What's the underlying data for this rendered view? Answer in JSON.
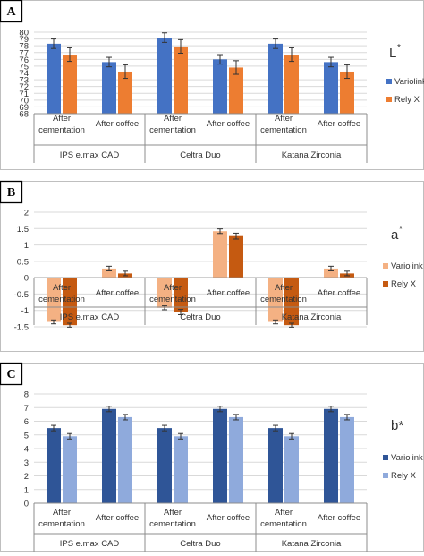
{
  "chart_data": [
    {
      "type": "bar",
      "panel_label": "A",
      "side_label": "L",
      "side_label_sup": "*",
      "groups": [
        "IPS e.max CAD",
        "Celtra Duo",
        "Katana Zirconia"
      ],
      "categories": [
        [
          "After",
          "cementation"
        ],
        [
          "After coffee"
        ],
        [
          "After",
          "cementation"
        ],
        [
          "After coffee"
        ],
        [
          "After",
          "cementation"
        ],
        [
          "After coffee"
        ]
      ],
      "ylim": [
        68,
        80
      ],
      "yticks": [
        68,
        69,
        70,
        71,
        72,
        73,
        74,
        75,
        76,
        77,
        78,
        79,
        80
      ],
      "grid": true,
      "legend_position": "right",
      "series": [
        {
          "name": "Variolink",
          "color": "#4472c4",
          "values": [
            78.3,
            75.6,
            79.2,
            76.0,
            78.3,
            75.6
          ],
          "errors": [
            0.7,
            0.7,
            0.7,
            0.7,
            0.7,
            0.7
          ]
        },
        {
          "name": "Rely X",
          "color": "#ed7d31",
          "values": [
            76.7,
            74.2,
            77.9,
            74.8,
            76.7,
            74.2
          ],
          "errors": [
            1.0,
            1.0,
            1.0,
            1.0,
            1.0,
            1.0
          ]
        }
      ]
    },
    {
      "type": "bar",
      "panel_label": "B",
      "side_label": "a",
      "side_label_sup": "*",
      "groups": [
        "IPS e.max CAD",
        "Celtra Duo",
        "Katana Zirconia"
      ],
      "categories": [
        [
          "After",
          "cementation"
        ],
        [
          "After coffee"
        ],
        [
          "After",
          "cementation"
        ],
        [
          "After coffee"
        ],
        [
          "After",
          "cementation"
        ],
        [
          "After coffee"
        ]
      ],
      "ylim": [
        -1.5,
        2
      ],
      "yticks": [
        -1.5,
        -1,
        -0.5,
        0,
        0.5,
        1,
        1.5,
        2
      ],
      "grid": true,
      "legend_position": "right",
      "series": [
        {
          "name": "Variolink",
          "color": "#f4b183",
          "values": [
            -1.35,
            0.28,
            -0.92,
            1.42,
            -1.35,
            0.28
          ],
          "errors": [
            0.06,
            0.07,
            0.06,
            0.07,
            0.06,
            0.07
          ]
        },
        {
          "name": "Rely X",
          "color": "#c55a11",
          "values": [
            -1.45,
            0.13,
            -1.05,
            1.27,
            -1.45,
            0.13
          ],
          "errors": [
            0.06,
            0.07,
            0.08,
            0.09,
            0.06,
            0.07
          ]
        }
      ]
    },
    {
      "type": "bar",
      "panel_label": "C",
      "side_label": "b*",
      "side_label_sup": "",
      "groups": [
        "IPS e.max CAD",
        "Celtra Duo",
        "Katana Zirconia"
      ],
      "categories": [
        [
          "After",
          "cementation"
        ],
        [
          "After coffee"
        ],
        [
          "After",
          "cementation"
        ],
        [
          "After coffee"
        ],
        [
          "After",
          "cementation"
        ],
        [
          "After coffee"
        ]
      ],
      "ylim": [
        0,
        8
      ],
      "yticks": [
        0,
        1,
        2,
        3,
        4,
        5,
        6,
        7,
        8
      ],
      "grid": true,
      "legend_position": "right",
      "series": [
        {
          "name": "Variolink",
          "color": "#2f5597",
          "values": [
            5.5,
            6.9,
            5.5,
            6.9,
            5.5,
            6.9
          ],
          "errors": [
            0.2,
            0.2,
            0.2,
            0.2,
            0.2,
            0.2
          ]
        },
        {
          "name": "Rely X",
          "color": "#8faadc",
          "values": [
            4.9,
            6.3,
            4.9,
            6.3,
            4.9,
            6.3
          ],
          "errors": [
            0.2,
            0.2,
            0.2,
            0.2,
            0.2,
            0.2
          ]
        }
      ]
    }
  ]
}
